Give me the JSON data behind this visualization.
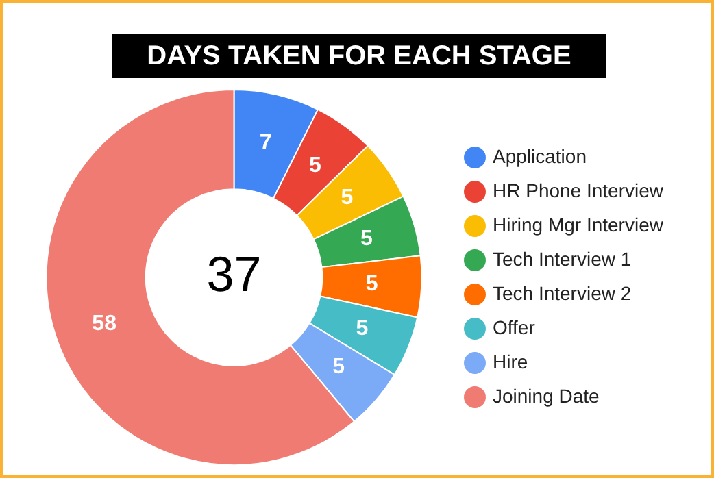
{
  "chart_data": {
    "type": "donut",
    "title": "DAYS TAKEN FOR EACH STAGE",
    "categories": [
      "Application",
      "HR Phone Interview",
      "Hiring Mgr Interview",
      "Tech Interview 1",
      "Tech Interview 2",
      "Offer",
      "Hire",
      "Joining Date"
    ],
    "values": [
      7,
      5,
      5,
      5,
      5,
      5,
      5,
      58
    ],
    "colors": [
      "#4285f4",
      "#ea4335",
      "#fbbc04",
      "#34a853",
      "#ff6d01",
      "#46bdc6",
      "#7baaf7",
      "#f07b72"
    ],
    "data_labels": true,
    "legend": "right",
    "annotations": [
      "37"
    ]
  }
}
